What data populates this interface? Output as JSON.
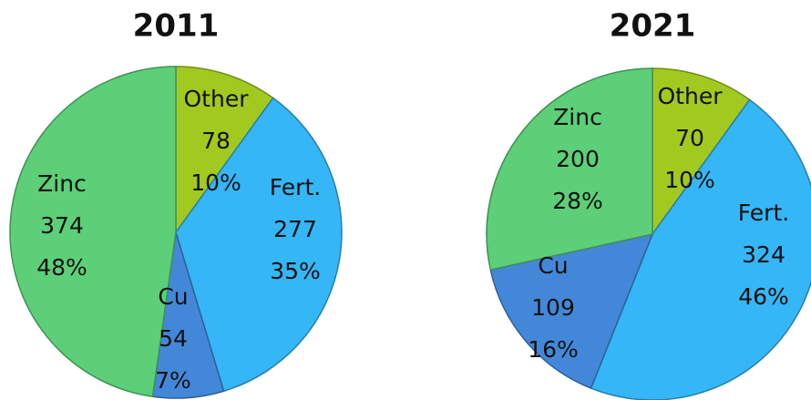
{
  "chart_data": [
    {
      "type": "pie",
      "title": "2011",
      "categories": [
        "Other",
        "Fert.",
        "Cu",
        "Zinc"
      ],
      "values": [
        78,
        277,
        54,
        374
      ],
      "percent_labels": [
        "10%",
        "35%",
        "7%",
        "48%"
      ],
      "colors": [
        "#a2c91f",
        "#35b6f6",
        "#4388d8",
        "#5ccf78"
      ]
    },
    {
      "type": "pie",
      "title": "2021",
      "categories": [
        "Other",
        "Fert.",
        "Cu",
        "Zinc"
      ],
      "values": [
        70,
        324,
        109,
        200
      ],
      "percent_labels": [
        "10%",
        "46%",
        "16%",
        "28%"
      ],
      "colors": [
        "#a2c91f",
        "#35b6f6",
        "#4388d8",
        "#5ccf78"
      ]
    }
  ]
}
